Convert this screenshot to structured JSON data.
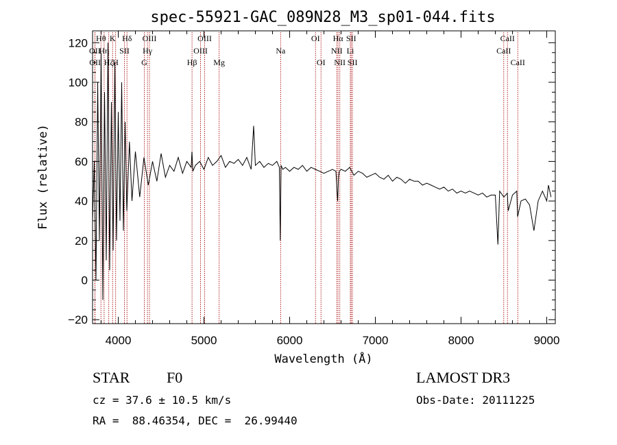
{
  "chart_data": {
    "type": "line",
    "title": "spec-55921-GAC_089N28_M3_sp01-044.fits",
    "xlabel": "Wavelength (Å)",
    "ylabel": "Flux (relative)",
    "xlim": [
      3700,
      9100
    ],
    "ylim": [
      -22,
      126
    ],
    "xticks": [
      4000,
      5000,
      6000,
      7000,
      8000,
      9000
    ],
    "yticks": [
      -20,
      0,
      20,
      40,
      60,
      80,
      100,
      120
    ],
    "series": [
      {
        "name": "flux",
        "x": [
          3700,
          3720,
          3740,
          3760,
          3780,
          3800,
          3820,
          3840,
          3860,
          3880,
          3900,
          3920,
          3940,
          3960,
          3980,
          4000,
          4020,
          4040,
          4060,
          4080,
          4100,
          4130,
          4160,
          4200,
          4250,
          4300,
          4350,
          4400,
          4450,
          4500,
          4550,
          4600,
          4650,
          4700,
          4750,
          4800,
          4850,
          4860,
          4870,
          4900,
          4950,
          5000,
          5050,
          5100,
          5150,
          5200,
          5250,
          5300,
          5350,
          5400,
          5450,
          5500,
          5550,
          5580,
          5600,
          5650,
          5700,
          5750,
          5800,
          5850,
          5880,
          5890,
          5900,
          5920,
          5950,
          6000,
          6050,
          6100,
          6150,
          6200,
          6250,
          6300,
          6350,
          6400,
          6450,
          6500,
          6540,
          6560,
          6570,
          6580,
          6600,
          6650,
          6700,
          6750,
          6800,
          6850,
          6900,
          6950,
          7000,
          7050,
          7100,
          7150,
          7200,
          7250,
          7300,
          7350,
          7400,
          7450,
          7500,
          7550,
          7600,
          7650,
          7700,
          7750,
          7800,
          7850,
          7900,
          7950,
          8000,
          8050,
          8100,
          8150,
          8200,
          8250,
          8300,
          8350,
          8400,
          8430,
          8450,
          8500,
          8540,
          8550,
          8600,
          8650,
          8660,
          8700,
          8750,
          8800,
          8850,
          8900,
          8950,
          9000,
          9020,
          9050
        ],
        "y": [
          30,
          60,
          0,
          100,
          20,
          115,
          -10,
          95,
          10,
          120,
          5,
          90,
          15,
          110,
          20,
          85,
          30,
          100,
          25,
          80,
          35,
          70,
          40,
          65,
          42,
          62,
          48,
          60,
          50,
          64,
          52,
          58,
          55,
          62,
          54,
          60,
          57,
          65,
          55,
          58,
          60,
          56,
          62,
          58,
          60,
          63,
          57,
          60,
          59,
          61,
          58,
          62,
          56,
          78,
          58,
          60,
          57,
          59,
          58,
          60,
          57,
          20,
          58,
          56,
          57,
          55,
          57,
          56,
          58,
          55,
          57,
          56,
          55,
          54,
          55,
          56,
          55,
          40,
          52,
          55,
          56,
          55,
          57,
          53,
          55,
          54,
          52,
          53,
          54,
          52,
          51,
          53,
          50,
          52,
          51,
          49,
          51,
          50,
          50,
          48,
          49,
          48,
          47,
          46,
          47,
          45,
          46,
          44,
          45,
          44,
          45,
          44,
          43,
          44,
          42,
          43,
          43,
          18,
          45,
          42,
          44,
          35,
          43,
          45,
          32,
          40,
          41,
          38,
          25,
          40,
          45,
          40,
          48,
          42
        ]
      }
    ],
    "lines": [
      {
        "name": "OII",
        "x": 3727,
        "row": 1
      },
      {
        "name": "OII",
        "x": 3729,
        "row": 2
      },
      {
        "name": "Hθ",
        "x": 3798,
        "row": 0
      },
      {
        "name": "Hη",
        "x": 3835,
        "row": 1
      },
      {
        "name": "Hζ",
        "x": 3889,
        "row": 2
      },
      {
        "name": "K",
        "x": 3934,
        "row": 0
      },
      {
        "name": "H",
        "x": 3969,
        "row": 2
      },
      {
        "name": "SII",
        "x": 4072,
        "row": 1
      },
      {
        "name": "Hδ",
        "x": 4102,
        "row": 0
      },
      {
        "name": "G",
        "x": 4304,
        "row": 2
      },
      {
        "name": "Hγ",
        "x": 4341,
        "row": 1
      },
      {
        "name": "OIII",
        "x": 4364,
        "row": 0
      },
      {
        "name": "Hβ",
        "x": 4861,
        "row": 2
      },
      {
        "name": "OIII",
        "x": 4960,
        "row": 1
      },
      {
        "name": "OIII",
        "x": 5008,
        "row": 0
      },
      {
        "name": "Mg",
        "x": 5177,
        "row": 2
      },
      {
        "name": "Na",
        "x": 5895,
        "row": 1
      },
      {
        "name": "OI",
        "x": 6302,
        "row": 0
      },
      {
        "name": "OI",
        "x": 6366,
        "row": 2
      },
      {
        "name": "NII",
        "x": 6550,
        "row": 1
      },
      {
        "name": "Hα",
        "x": 6565,
        "row": 0
      },
      {
        "name": "NII",
        "x": 6585,
        "row": 2
      },
      {
        "name": "Li",
        "x": 6708,
        "row": 1
      },
      {
        "name": "SII",
        "x": 6718,
        "row": 0
      },
      {
        "name": "SII",
        "x": 6733,
        "row": 2
      },
      {
        "name": "CaII",
        "x": 8498,
        "row": 1
      },
      {
        "name": "CaII",
        "x": 8542,
        "row": 0
      },
      {
        "name": "CaII",
        "x": 8662,
        "row": 2
      }
    ]
  },
  "info": {
    "object_class": "STAR",
    "subclass": "F0",
    "survey": "LAMOST DR3",
    "cz": "cz = 37.6 ± 10.5 km/s",
    "obs_date": "Obs-Date: 20111225",
    "coords": "RA =  88.46354, DEC =  26.99440"
  },
  "colors": {
    "spectrum": "#000000",
    "line_marker": "#b22222"
  }
}
